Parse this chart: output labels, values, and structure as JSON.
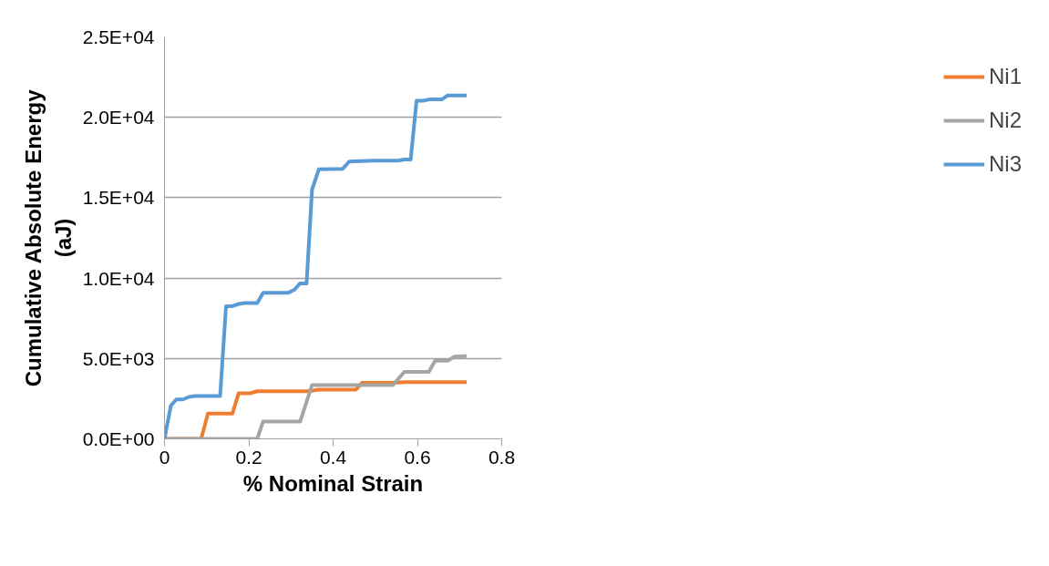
{
  "chart_data": {
    "type": "line",
    "xlabel": "% Nominal Strain",
    "ylabel": "Cumulative Absolute Energy (aJ)",
    "xlim": [
      0,
      0.8
    ],
    "xticks": [
      0,
      0.2,
      0.4,
      0.6,
      0.8
    ],
    "ylim": [
      0,
      25000
    ],
    "yticks": [
      {
        "value": 0,
        "label": "0.0E+00"
      },
      {
        "value": 5000,
        "label": "5.0E+03"
      },
      {
        "value": 10000,
        "label": "1.0E+04"
      },
      {
        "value": 15000,
        "label": "1.5E+04"
      },
      {
        "value": 20000,
        "label": "2.0E+04"
      },
      {
        "value": 25000,
        "label": "2.5E+04"
      }
    ],
    "grid": "y",
    "legend": "right",
    "marker": "none",
    "line_style": "solid",
    "series": [
      {
        "name": "Ni1",
        "color": "#ed7d31",
        "x": [
          0,
          0.087,
          0.103,
          0.161,
          0.176,
          0.204,
          0.22,
          0.342,
          0.366,
          0.454,
          0.469,
          0.542,
          0.571,
          0.629,
          0.717
        ],
        "values": [
          0,
          0,
          1570,
          1570,
          2840,
          2840,
          2960,
          2960,
          3060,
          3060,
          3490,
          3490,
          3530,
          3530,
          3530
        ]
      },
      {
        "name": "Ni2",
        "color": "#a5a5a5",
        "x": [
          0,
          0.22,
          0.234,
          0.322,
          0.35,
          0.542,
          0.569,
          0.627,
          0.642,
          0.672,
          0.688,
          0.717
        ],
        "values": [
          0,
          0,
          1080,
          1080,
          3350,
          3350,
          4170,
          4170,
          4860,
          4860,
          5120,
          5150
        ]
      },
      {
        "name": "Ni3",
        "color": "#5b9bd5",
        "x": [
          0,
          0.015,
          0.028,
          0.044,
          0.058,
          0.072,
          0.132,
          0.146,
          0.161,
          0.176,
          0.189,
          0.22,
          0.234,
          0.293,
          0.308,
          0.321,
          0.337,
          0.35,
          0.366,
          0.423,
          0.438,
          0.496,
          0.554,
          0.569,
          0.584,
          0.598,
          0.613,
          0.629,
          0.658,
          0.672,
          0.717
        ],
        "values": [
          0,
          2060,
          2450,
          2450,
          2610,
          2670,
          2670,
          8250,
          8250,
          8390,
          8450,
          8450,
          9080,
          9080,
          9270,
          9660,
          9660,
          15500,
          16760,
          16800,
          17250,
          17300,
          17300,
          17370,
          17370,
          21030,
          21030,
          21110,
          21110,
          21360,
          21360
        ]
      }
    ]
  }
}
